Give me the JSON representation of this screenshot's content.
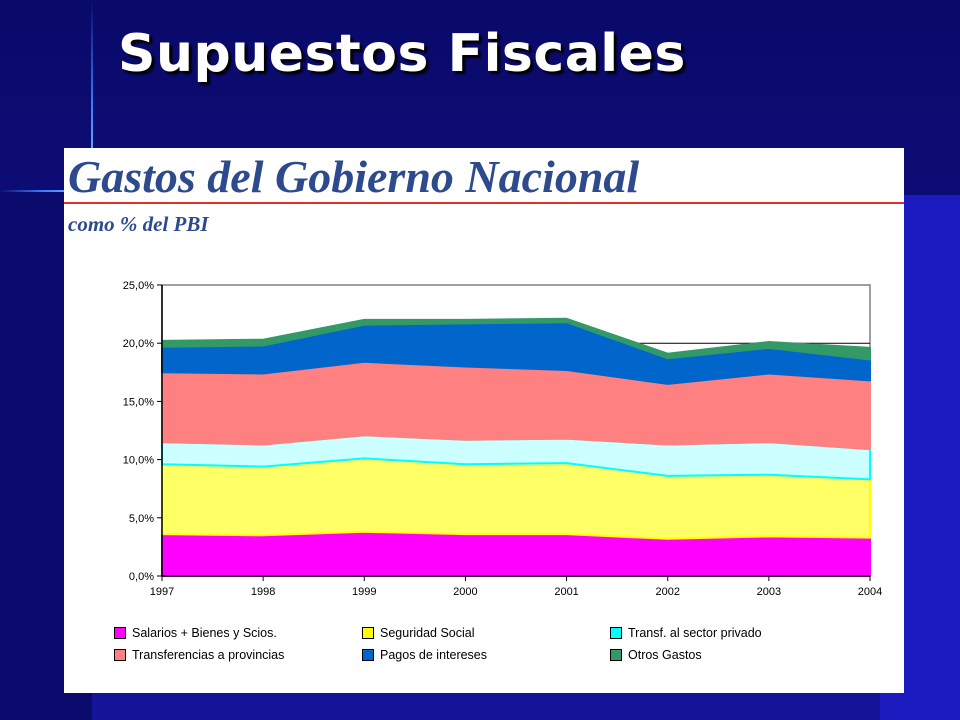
{
  "slide": {
    "title": "Supuestos Fiscales"
  },
  "chart_data": {
    "type": "area",
    "title": "Gastos del Gobierno Nacional",
    "subtitle": "como % del PBI",
    "categories": [
      "1997",
      "1998",
      "1999",
      "2000",
      "2001",
      "2002",
      "2003",
      "2004"
    ],
    "y_ticks": [
      "0,0%",
      "5,0%",
      "10,0%",
      "15,0%",
      "20,0%",
      "25,0%"
    ],
    "ylim": [
      0,
      25
    ],
    "stacked": true,
    "legend_position": "bottom",
    "series": [
      {
        "name": "Salarios + Bienes y Scios.",
        "color": "#ff00ff",
        "values": [
          3.6,
          3.5,
          3.8,
          3.6,
          3.6,
          3.2,
          3.4,
          3.3
        ]
      },
      {
        "name": "Seguridad Social",
        "color": "#ffff66",
        "values": [
          6.0,
          5.9,
          6.3,
          6.0,
          6.1,
          5.4,
          5.3,
          5.0
        ]
      },
      {
        "name": "Transf. al sector privado",
        "color": "#ccffff",
        "values": [
          1.9,
          1.9,
          2.0,
          2.1,
          2.1,
          2.7,
          2.8,
          2.6
        ]
      },
      {
        "name": "Transferencias a provincias",
        "color": "#ff8080",
        "values": [
          6.0,
          6.1,
          6.3,
          6.3,
          5.9,
          5.2,
          5.9,
          5.9
        ]
      },
      {
        "name": "Pagos de intereses",
        "color": "#0066cc",
        "values": [
          2.2,
          2.4,
          3.2,
          3.7,
          4.1,
          2.2,
          2.2,
          1.8
        ]
      },
      {
        "name": "Otros Gastos",
        "color": "#339966",
        "values": [
          0.5,
          0.5,
          0.4,
          0.3,
          0.3,
          0.4,
          0.5,
          1.0
        ]
      }
    ],
    "edge_colors": {
      "Salarios + Bienes y Scios.": "#ff00ff",
      "Seguridad Social": "#ffff00",
      "Transf. al sector privado": "#00ffff",
      "Transferencias a provincias": "#ff8080",
      "Pagos de intereses": "#0066cc",
      "Otros Gastos": "#339966"
    },
    "grid": true
  }
}
